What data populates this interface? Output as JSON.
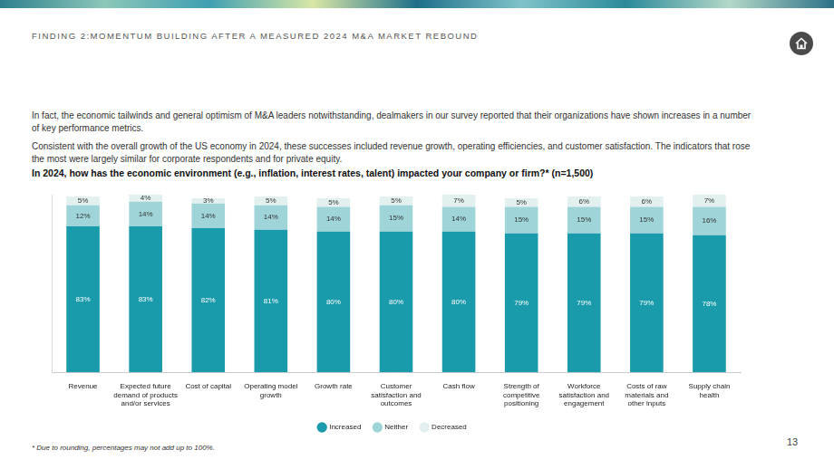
{
  "page": {
    "header": "FINDING 2:MOMENTUM BUILDING AFTER A MEASURED 2024 M&A MARKET REBOUND",
    "paragraphs": [
      "In fact, the economic tailwinds and general optimism of M&A leaders notwithstanding, dealmakers in our survey reported that their organizations have shown increases in a number of key performance metrics.",
      "Consistent with the overall growth of the US economy in 2024, these successes included revenue growth, operating efficiencies, and customer satisfaction. The indicators that rose the most were largely similar for corporate respondents and for private equity."
    ],
    "footnote": "* Due to rounding, percentages may not add up to 100%.",
    "page_number": "13"
  },
  "chart_data": {
    "type": "bar",
    "title": "In 2024, how has the economic environment (e.g., inflation, interest rates, talent) impacted your company or firm?* (n=1,500)",
    "categories": [
      "Revenue",
      "Expected future demand of products and/or services",
      "Cost of capital",
      "Operating model growth",
      "Growth rate",
      "Customer satisfaction and outcomes",
      "Cash flow",
      "Strength of competitive positioning",
      "Workforce satisfaction and engagement",
      "Costs of raw materials and other inputs",
      "Supply chain health"
    ],
    "series": [
      {
        "name": "Increased",
        "color": "#1a9bab",
        "values": [
          83,
          83,
          82,
          81,
          80,
          80,
          80,
          79,
          79,
          79,
          78
        ],
        "value_labels": [
          "83%",
          "83%",
          "82%",
          "81%",
          "80%",
          "80%",
          "80%",
          "79%",
          "79%",
          "79%",
          "78%"
        ]
      },
      {
        "name": "Neither",
        "color": "#9fd5d8",
        "values": [
          12,
          14,
          14,
          14,
          14,
          15,
          14,
          15,
          15,
          15,
          16
        ],
        "value_labels": [
          "12%",
          "14%",
          "14%",
          "14%",
          "14%",
          "15%",
          "14%",
          "15%",
          "15%",
          "15%",
          "16%"
        ]
      },
      {
        "name": "Decreased",
        "color": "#e2f1ef",
        "values": [
          5,
          4,
          3,
          5,
          5,
          5,
          7,
          5,
          6,
          6,
          7
        ],
        "value_labels": [
          "5%",
          "4%",
          "3%",
          "5%",
          "5%",
          "5%",
          "7%",
          "5%",
          "6%",
          "6%",
          "7%"
        ]
      }
    ],
    "ylim": [
      0,
      101
    ],
    "stacked": true,
    "data_labels": true,
    "grid": false,
    "tick_labels": "x",
    "legend": "bottom"
  }
}
